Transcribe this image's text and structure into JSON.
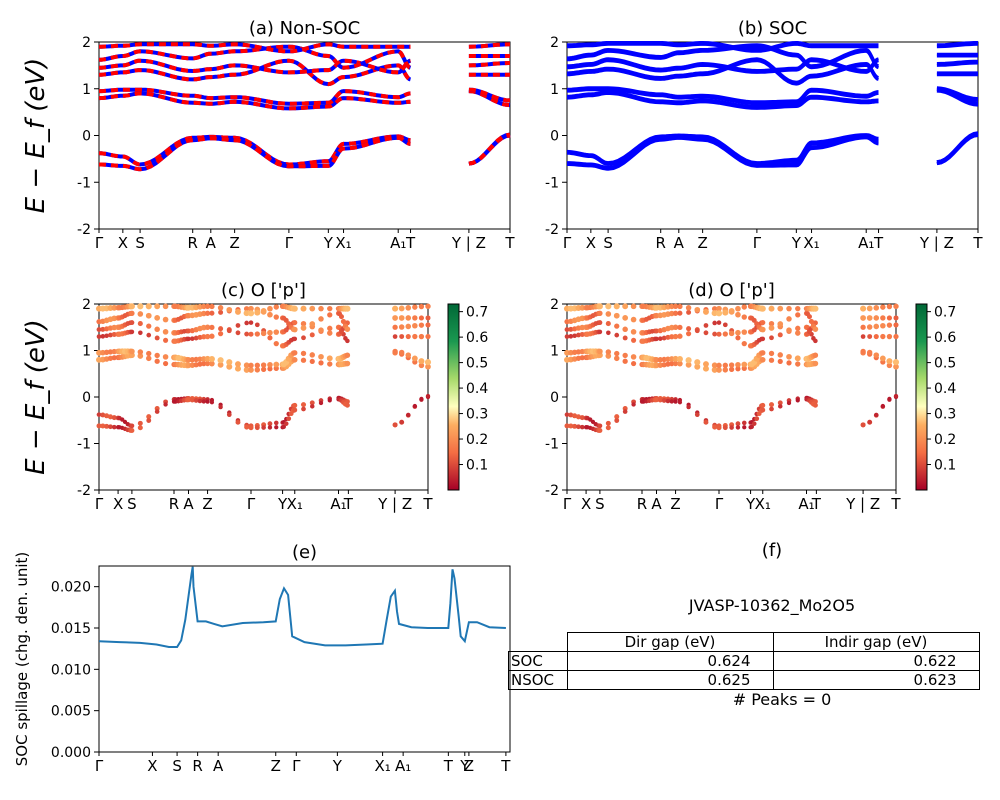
{
  "chart_data": [
    {
      "id": "a",
      "type": "line",
      "title": "(a) Non-SOC",
      "ylabel": "E − E_f (eV)",
      "ylim": [
        -2,
        2
      ],
      "yticks": [
        -2,
        -1,
        0,
        1,
        2
      ],
      "xticks": [
        "Γ",
        "X",
        "S",
        "R",
        "A",
        "Z",
        "Γ",
        "Y",
        "X₁",
        "A₁",
        "T",
        "Y | Z",
        "T"
      ],
      "series": [
        {
          "style": "blue-red-dashed",
          "x_range": [
            0,
            1
          ],
          "bands": [
            [
              -0.38,
              -0.45,
              -0.62,
              -0.05,
              -0.03,
              -0.05,
              -0.62,
              -0.55,
              -0.18,
              -0.02,
              -0.1,
              -0.6,
              0.0
            ],
            [
              -0.62,
              -0.65,
              -0.72,
              -0.1,
              -0.06,
              -0.1,
              -0.66,
              -0.65,
              -0.28,
              -0.05,
              -0.18,
              -0.6,
              0.02
            ],
            [
              0.8,
              0.85,
              0.9,
              0.7,
              0.68,
              0.72,
              0.58,
              0.62,
              0.8,
              0.7,
              0.72,
              0.95,
              0.65
            ],
            [
              0.95,
              0.98,
              0.98,
              0.85,
              0.8,
              0.82,
              0.68,
              0.7,
              0.95,
              0.82,
              0.9,
              0.98,
              0.75
            ],
            [
              1.3,
              1.35,
              1.4,
              1.2,
              1.25,
              1.3,
              1.6,
              1.1,
              1.25,
              1.5,
              1.2,
              1.3,
              1.3
            ],
            [
              1.45,
              1.5,
              1.6,
              1.38,
              1.42,
              1.5,
              1.35,
              1.4,
              1.6,
              1.35,
              1.6,
              1.5,
              1.55
            ],
            [
              1.62,
              1.7,
              1.8,
              1.65,
              1.75,
              1.8,
              1.9,
              1.7,
              1.45,
              1.8,
              1.45,
              1.7,
              1.7
            ],
            [
              1.9,
              1.92,
              1.95,
              1.95,
              1.92,
              1.95,
              1.8,
              1.95,
              1.9,
              1.9,
              1.9,
              1.9,
              1.95
            ]
          ]
        }
      ]
    },
    {
      "id": "b",
      "type": "line",
      "title": "(b) SOC",
      "ylim": [
        -2,
        2
      ],
      "yticks": [
        -2,
        -1,
        0,
        1,
        2
      ],
      "xticks": [
        "Γ",
        "X",
        "S",
        "R",
        "A",
        "Z",
        "Γ",
        "Y",
        "X₁",
        "A₁",
        "T",
        "Y | Z",
        "T"
      ],
      "series": [
        {
          "style": "blue",
          "bands": "same-as-a"
        }
      ]
    },
    {
      "id": "c",
      "type": "scatter",
      "title": "(c)  O ['p']",
      "ylabel": "E − E_f (eV)",
      "ylim": [
        -2,
        2
      ],
      "yticks": [
        -2,
        -1,
        0,
        1,
        2
      ],
      "xticks": [
        "Γ",
        "X",
        "S",
        "R",
        "A",
        "Z",
        "Γ",
        "Y",
        "X₁",
        "A₁",
        "T",
        "Y | Z",
        "T"
      ],
      "colorbar": {
        "ticks": [
          0.1,
          0.2,
          0.3,
          0.4,
          0.5,
          0.6,
          0.7
        ],
        "range": [
          0.0,
          0.73
        ],
        "colormap": "RdYlGn"
      },
      "band_weights": [
        0.08,
        0.08,
        0.2,
        0.22,
        0.12,
        0.15,
        0.17,
        0.22
      ]
    },
    {
      "id": "d",
      "type": "scatter",
      "title": "(d) O ['p']",
      "ylim": [
        -2,
        2
      ],
      "yticks": [
        -2,
        -1,
        0,
        1,
        2
      ],
      "xticks": [
        "Γ",
        "X",
        "S",
        "R",
        "A",
        "Z",
        "Γ",
        "Y",
        "X₁",
        "A₁",
        "T",
        "Y | Z",
        "T"
      ],
      "colorbar": {
        "ticks": [
          0.1,
          0.2,
          0.3,
          0.4,
          0.5,
          0.6,
          0.7
        ],
        "range": [
          0.0,
          0.73
        ],
        "colormap": "RdYlGn"
      },
      "band_weights": [
        0.08,
        0.08,
        0.2,
        0.22,
        0.12,
        0.15,
        0.17,
        0.22
      ]
    },
    {
      "id": "e",
      "type": "line",
      "title": "(e)",
      "ylabel": "SOC spillage (chg. den. unit)",
      "ylim": [
        0,
        0.0225
      ],
      "yticks": [
        "0.000",
        "0.005",
        "0.010",
        "0.015",
        "0.020"
      ],
      "xticks": [
        "Γ",
        "X",
        "S",
        "R",
        "A",
        "Z",
        "Γ",
        "Y",
        "X₁",
        "A₁",
        "T",
        "Y",
        "Z",
        "T"
      ],
      "xtick_pos": [
        0,
        0.13,
        0.19,
        0.24,
        0.29,
        0.43,
        0.48,
        0.58,
        0.69,
        0.74,
        0.85,
        0.89,
        0.9,
        0.99
      ],
      "series": [
        {
          "name": "",
          "color": "#1f77b4",
          "x": [
            0,
            0.05,
            0.1,
            0.14,
            0.17,
            0.19,
            0.2,
            0.21,
            0.225,
            0.228,
            0.23,
            0.24,
            0.26,
            0.28,
            0.3,
            0.35,
            0.4,
            0.43,
            0.44,
            0.45,
            0.46,
            0.47,
            0.5,
            0.55,
            0.6,
            0.65,
            0.69,
            0.7,
            0.71,
            0.72,
            0.725,
            0.73,
            0.76,
            0.8,
            0.85,
            0.855,
            0.86,
            0.865,
            0.875,
            0.88,
            0.89,
            0.9,
            0.92,
            0.95,
            0.99
          ],
          "y": [
            0.0134,
            0.0133,
            0.0132,
            0.013,
            0.0127,
            0.0127,
            0.0135,
            0.016,
            0.0215,
            0.0224,
            0.02,
            0.0158,
            0.0158,
            0.0155,
            0.0152,
            0.0156,
            0.0157,
            0.0158,
            0.0185,
            0.0198,
            0.019,
            0.014,
            0.0133,
            0.0129,
            0.0129,
            0.013,
            0.0131,
            0.016,
            0.0188,
            0.0195,
            0.017,
            0.0155,
            0.0151,
            0.015,
            0.015,
            0.018,
            0.0221,
            0.021,
            0.0165,
            0.014,
            0.0134,
            0.0157,
            0.0157,
            0.0151,
            0.015
          ]
        }
      ]
    }
  ],
  "table": {
    "title": "(f)",
    "material": "JVASP-10362_Mo2O5",
    "headers": [
      "Dir gap (eV)",
      "Indir gap (eV)"
    ],
    "rows": [
      {
        "label": "SOC",
        "dir": "0.624",
        "indir": "0.622"
      },
      {
        "label": "NSOC",
        "dir": "0.625",
        "indir": "0.623"
      }
    ],
    "peaks": "# Peaks = 0"
  },
  "colors": {
    "blue": "#0000ff",
    "red": "#ff0000",
    "spillage": "#1f77b4"
  }
}
